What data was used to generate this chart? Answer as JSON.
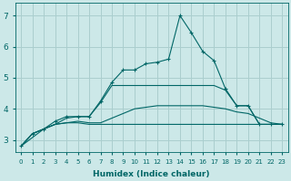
{
  "xlabel": "Humidex (Indice chaleur)",
  "bg_color": "#cce8e8",
  "grid_color": "#aacece",
  "line_color": "#006666",
  "xlim": [
    -0.5,
    23.5
  ],
  "ylim": [
    2.6,
    7.4
  ],
  "yticks": [
    3,
    4,
    5,
    6,
    7
  ],
  "xticks": [
    0,
    1,
    2,
    3,
    4,
    5,
    6,
    7,
    8,
    9,
    10,
    11,
    12,
    13,
    14,
    15,
    16,
    17,
    18,
    19,
    20,
    21,
    22,
    23
  ],
  "series": [
    {
      "x": [
        0,
        1,
        2,
        3,
        4,
        5,
        6,
        7,
        8,
        9,
        10,
        11,
        12,
        13,
        14,
        15,
        16,
        17,
        18,
        19,
        20,
        21,
        22,
        23
      ],
      "y": [
        2.8,
        3.2,
        3.35,
        3.5,
        3.55,
        3.55,
        3.5,
        3.5,
        3.5,
        3.5,
        3.5,
        3.5,
        3.5,
        3.5,
        3.5,
        3.5,
        3.5,
        3.5,
        3.5,
        3.5,
        3.5,
        3.5,
        3.5,
        3.5
      ],
      "marker": false,
      "linestyle": "-"
    },
    {
      "x": [
        0,
        1,
        2,
        3,
        4,
        5,
        6,
        7,
        8,
        9,
        10,
        11,
        12,
        13,
        14,
        15,
        16,
        17,
        18,
        19,
        20,
        21,
        22,
        23
      ],
      "y": [
        2.8,
        3.2,
        3.35,
        3.5,
        3.55,
        3.6,
        3.55,
        3.55,
        3.7,
        3.85,
        4.0,
        4.05,
        4.1,
        4.1,
        4.1,
        4.1,
        4.1,
        4.05,
        4.0,
        3.9,
        3.85,
        3.7,
        3.55,
        3.5
      ],
      "marker": false,
      "linestyle": "-"
    },
    {
      "x": [
        0,
        2,
        3,
        4,
        5,
        6,
        7,
        8,
        9,
        10,
        11,
        12,
        13,
        14,
        15,
        16,
        17,
        18,
        19,
        20,
        21,
        22,
        23
      ],
      "y": [
        2.8,
        3.35,
        3.5,
        3.7,
        3.75,
        3.75,
        4.2,
        4.75,
        4.75,
        4.75,
        4.75,
        4.75,
        4.75,
        4.75,
        4.75,
        4.75,
        4.75,
        4.6,
        4.1,
        4.1,
        3.5,
        3.5,
        3.5
      ],
      "marker": false,
      "linestyle": "-"
    },
    {
      "x": [
        0,
        1,
        2,
        3,
        4,
        5,
        6,
        7,
        8,
        9,
        10,
        11,
        12,
        13,
        14,
        15,
        16,
        17,
        18,
        19,
        20,
        21,
        22,
        23
      ],
      "y": [
        2.8,
        3.2,
        3.35,
        3.6,
        3.75,
        3.75,
        3.75,
        4.25,
        4.85,
        5.25,
        5.25,
        5.45,
        5.5,
        5.6,
        7.0,
        6.45,
        5.85,
        5.55,
        4.65,
        4.1,
        4.1,
        3.5,
        3.5,
        3.5
      ],
      "marker": true,
      "linestyle": "-"
    }
  ]
}
